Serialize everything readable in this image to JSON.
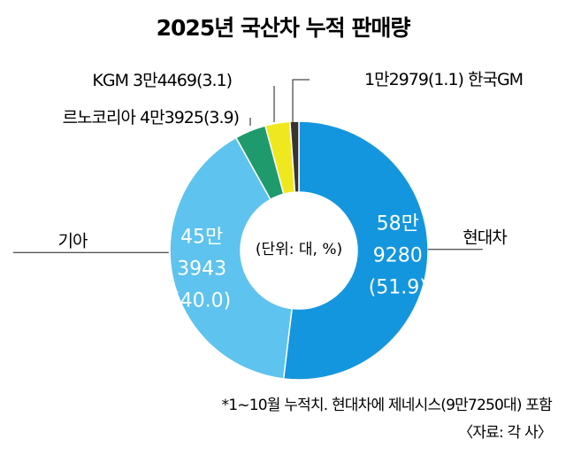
{
  "title": "2025년 국산차 누적 판매량",
  "unit_label": "(단위: 대, %)",
  "footnote": "*1~10월 누적치. 현대차에 제네시스(9만7250대) 포함",
  "source": "〈자료: 각 사〉",
  "chart_data": {
    "type": "pie",
    "title": "2025년 국산차 누적 판매량",
    "unit": "(단위: 대, %)",
    "slices": [
      {
        "name": "현대차",
        "value": 589280,
        "percent": 51.9,
        "label_lines": [
          "58만",
          "9280",
          "(51.9)"
        ],
        "color": "#1496de"
      },
      {
        "name": "기아",
        "value": 453943,
        "percent": 40.0,
        "label_lines": [
          "45만",
          "3943",
          "(40.0)"
        ],
        "color": "#5ec3ee"
      },
      {
        "name": "르노코리아",
        "value": 43925,
        "percent": 3.9,
        "label": "르노코리아 4만3925(3.9)",
        "color": "#1e9a6c"
      },
      {
        "name": "KGM",
        "value": 34469,
        "percent": 3.1,
        "label": "KGM 3만4469(3.1)",
        "color": "#f0e81e"
      },
      {
        "name": "한국GM",
        "value": 12979,
        "percent": 1.1,
        "label": "1만2979(1.1) 한국GM",
        "color": "#3a3330"
      }
    ]
  }
}
